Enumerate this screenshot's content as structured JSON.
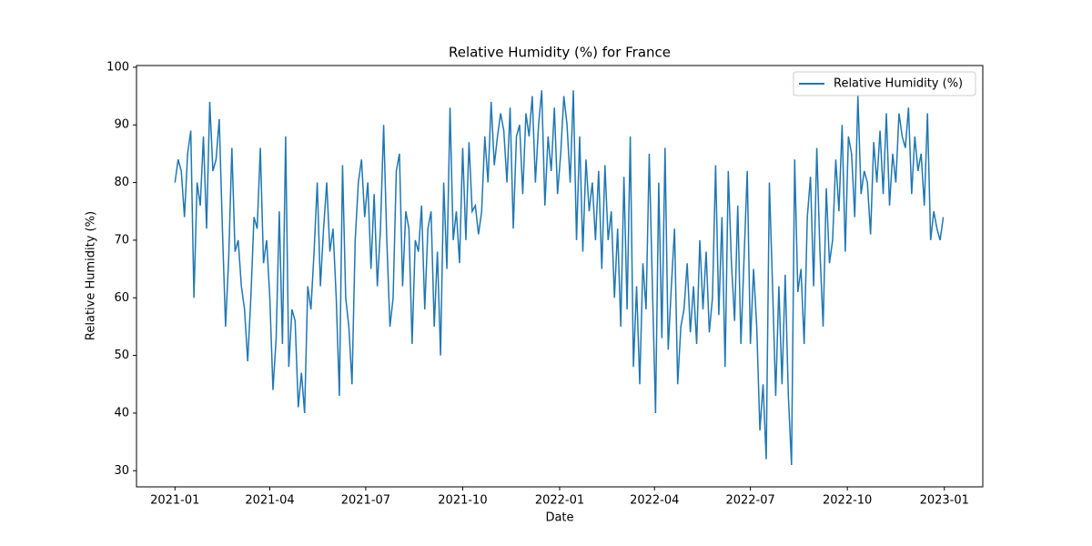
{
  "chart_data": {
    "type": "line",
    "title": "Relative Humidity (%) for France",
    "x_label": "Date",
    "y_label": "Relative Humidity (%)",
    "legend": "upper right",
    "x": [
      18628,
      18631,
      18634,
      18637,
      18640,
      18643,
      18646,
      18649,
      18652,
      18655,
      18658,
      18661,
      18664,
      18667,
      18670,
      18673,
      18676,
      18679,
      18682,
      18685,
      18688,
      18691,
      18694,
      18697,
      18700,
      18703,
      18706,
      18709,
      18712,
      18715,
      18718,
      18721,
      18724,
      18727,
      18730,
      18733,
      18736,
      18739,
      18742,
      18745,
      18748,
      18751,
      18754,
      18757,
      18760,
      18763,
      18766,
      18769,
      18772,
      18775,
      18778,
      18781,
      18784,
      18787,
      18790,
      18793,
      18796,
      18799,
      18802,
      18805,
      18808,
      18811,
      18814,
      18817,
      18820,
      18823,
      18826,
      18829,
      18832,
      18835,
      18838,
      18841,
      18844,
      18847,
      18850,
      18853,
      18856,
      18859,
      18862,
      18865,
      18868,
      18871,
      18874,
      18877,
      18880,
      18883,
      18886,
      18889,
      18892,
      18895,
      18898,
      18901,
      18904,
      18907,
      18910,
      18913,
      18916,
      18919,
      18922,
      18925,
      18928,
      18931,
      18934,
      18937,
      18940,
      18943,
      18946,
      18949,
      18952,
      18955,
      18958,
      18961,
      18964,
      18967,
      18970,
      18973,
      18976,
      18979,
      18982,
      18985,
      18988,
      18991,
      18994,
      18997,
      19000,
      19003,
      19006,
      19009,
      19012,
      19015,
      19018,
      19021,
      19024,
      19027,
      19030,
      19033,
      19036,
      19039,
      19042,
      19045,
      19048,
      19051,
      19054,
      19057,
      19060,
      19063,
      19066,
      19069,
      19072,
      19075,
      19078,
      19081,
      19084,
      19087,
      19090,
      19093,
      19096,
      19099,
      19102,
      19105,
      19108,
      19111,
      19114,
      19117,
      19120,
      19123,
      19126,
      19129,
      19132,
      19135,
      19138,
      19141,
      19144,
      19147,
      19150,
      19153,
      19156,
      19159,
      19162,
      19165,
      19168,
      19171,
      19174,
      19177,
      19180,
      19183,
      19186,
      19189,
      19192,
      19195,
      19198,
      19201,
      19204,
      19207,
      19210,
      19213,
      19216,
      19219,
      19222,
      19225,
      19228,
      19231,
      19234,
      19237,
      19240,
      19243,
      19246,
      19249,
      19252,
      19255,
      19258,
      19261,
      19264,
      19267,
      19270,
      19273,
      19276,
      19279,
      19282,
      19285,
      19288,
      19291,
      19294,
      19297,
      19300,
      19303,
      19306,
      19309,
      19312,
      19315,
      19318,
      19321,
      19324,
      19327,
      19330,
      19333,
      19336,
      19339,
      19342,
      19345,
      19348,
      19351,
      19354,
      19357
    ],
    "series": [
      {
        "name": "Relative Humidity (%)",
        "color": "#1f77b4",
        "values": [
          80,
          84,
          82,
          74,
          85,
          89,
          60,
          80,
          76,
          88,
          72,
          94,
          82,
          84,
          91,
          72,
          55,
          67,
          86,
          68,
          70,
          62,
          58,
          49,
          60,
          74,
          72,
          86,
          66,
          70,
          60,
          44,
          53,
          75,
          52,
          88,
          48,
          58,
          56,
          41,
          47,
          40,
          62,
          58,
          68,
          80,
          62,
          72,
          80,
          68,
          72,
          60,
          43,
          83,
          60,
          55,
          45,
          70,
          80,
          84,
          74,
          80,
          65,
          78,
          62,
          72,
          90,
          70,
          55,
          60,
          82,
          85,
          62,
          75,
          72,
          52,
          70,
          68,
          76,
          58,
          72,
          75,
          55,
          68,
          50,
          80,
          65,
          93,
          70,
          75,
          66,
          86,
          70,
          87,
          75,
          76,
          71,
          75,
          88,
          80,
          94,
          83,
          88,
          92,
          89,
          80,
          93,
          72,
          88,
          90,
          78,
          92,
          88,
          95,
          80,
          90,
          96,
          76,
          88,
          82,
          93,
          78,
          85,
          95,
          90,
          80,
          96,
          70,
          88,
          68,
          84,
          75,
          80,
          70,
          82,
          65,
          83,
          70,
          75,
          60,
          72,
          55,
          81,
          58,
          88,
          48,
          62,
          45,
          66,
          58,
          85,
          62,
          40,
          80,
          53,
          86,
          51,
          62,
          72,
          45,
          55,
          58,
          66,
          54,
          62,
          52,
          70,
          58,
          68,
          54,
          60,
          83,
          57,
          74,
          48,
          82,
          66,
          56,
          76,
          52,
          67,
          82,
          52,
          65,
          55,
          37,
          45,
          32,
          80,
          62,
          43,
          62,
          45,
          64,
          43,
          31,
          84,
          61,
          65,
          52,
          74,
          81,
          62,
          86,
          68,
          55,
          79,
          66,
          70,
          84,
          75,
          90,
          68,
          88,
          85,
          74,
          95,
          78,
          82,
          80,
          71,
          87,
          80,
          89,
          78,
          92,
          76,
          85,
          80,
          92,
          88,
          86,
          93,
          78,
          88,
          82,
          85,
          76,
          92,
          70,
          75,
          72,
          70,
          74
        ]
      }
    ],
    "xlim": [
      18591.5,
      19394.5
    ],
    "xticks": [
      {
        "value": 18628,
        "label": "2021-01"
      },
      {
        "value": 18718,
        "label": "2021-04"
      },
      {
        "value": 18809,
        "label": "2021-07"
      },
      {
        "value": 18901,
        "label": "2021-10"
      },
      {
        "value": 18993,
        "label": "2022-01"
      },
      {
        "value": 19083,
        "label": "2022-04"
      },
      {
        "value": 19174,
        "label": "2022-07"
      },
      {
        "value": 19266,
        "label": "2022-10"
      },
      {
        "value": 19358,
        "label": "2023-01"
      }
    ],
    "ylim": [
      27.2,
      100.3
    ],
    "yticks": [
      30,
      40,
      50,
      60,
      70,
      80,
      90,
      100
    ]
  }
}
